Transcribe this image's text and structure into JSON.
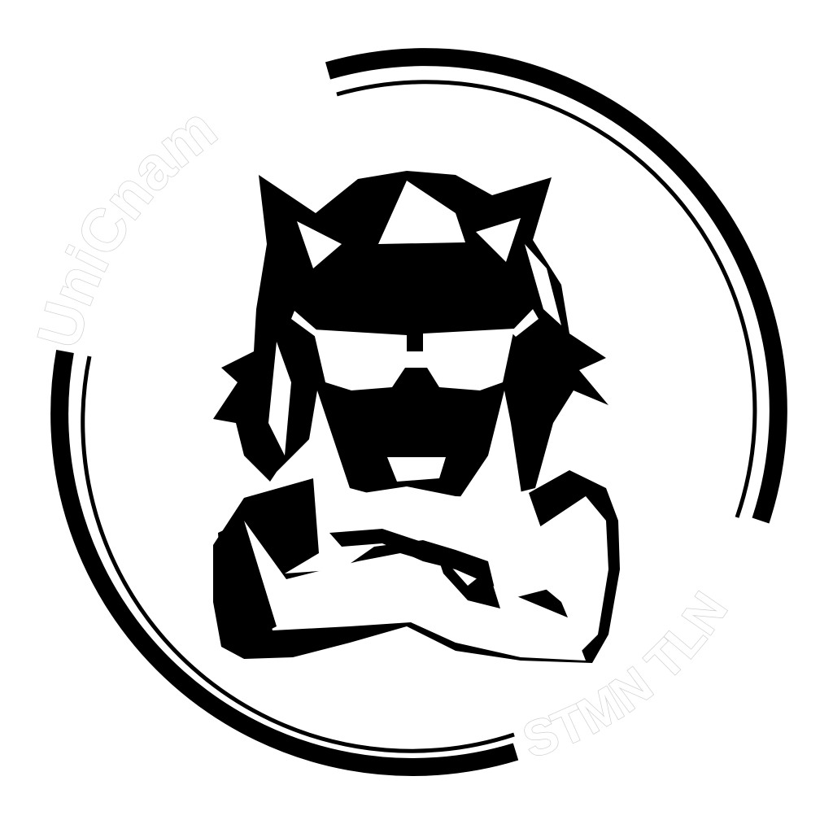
{
  "logo": {
    "top_text": "UniCnam",
    "bottom_text": "STMN TLN",
    "ink_color": "#000000",
    "paper_color": "#ffffff",
    "text_outline_color": "#cfcfcf",
    "subject": "character-with-cat-ears-and-sunglasses-arms-crossed"
  }
}
